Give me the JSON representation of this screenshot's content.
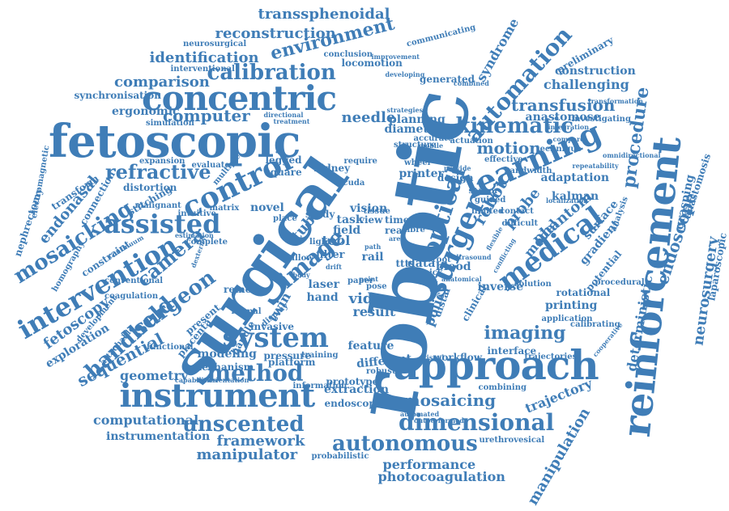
{
  "color": "#3f7db7",
  "words": [
    "robotic",
    "surgical",
    "fetoscopic",
    "concentric",
    "approach",
    "reinforcement",
    "instrument",
    "learning",
    "medical",
    "surgery",
    "optical",
    "control",
    "image",
    "system",
    "assisted",
    "intervention",
    "mosaicking",
    "method",
    "surgeon",
    "dimensional",
    "unscented",
    "autonomous",
    "kinematic",
    "automation",
    "transfusion",
    "procedure",
    "endoscope",
    "refractive",
    "calibration",
    "environment",
    "reconstruction",
    "transsphenoidal",
    "identification",
    "comparison",
    "computer",
    "imaging",
    "handheld",
    "sequential",
    "camera",
    "geometry",
    "computational",
    "instrumentation",
    "framework",
    "manipulator",
    "performance",
    "photocoagulation",
    "manipulation",
    "mosaicing",
    "trajectory",
    "deterministic",
    "neurosurgery",
    "grasping",
    "laparoscopic",
    "anastomosis",
    "challenging",
    "construction",
    "preliminary",
    "anastomose",
    "synchronisation",
    "ergonomic",
    "endonasal",
    "fetoscopy",
    "exploration",
    "motion",
    "adaptation",
    "kalman",
    "phantom",
    "probe",
    "robot",
    "video",
    "result",
    "extraction",
    "endoscopic",
    "printing",
    "tube",
    "twin",
    "tool",
    "filter",
    "laser",
    "hand",
    "feature",
    "different",
    "platform",
    "modeling",
    "mechanism",
    "printer",
    "design",
    "vision",
    "view",
    "time",
    "real",
    "fibre",
    "planning",
    "needle",
    "diameter",
    "syndrome",
    "communicating",
    "generated",
    "locomotion",
    "neurosurgical",
    "interventional",
    "simulation",
    "expansion",
    "distortion",
    "stitching",
    "homography",
    "constraint",
    "nephrectomy",
    "electromagnetic",
    "transform",
    "connection",
    "square",
    "legged",
    "kidney",
    "novel",
    "study",
    "task",
    "field",
    "rail",
    "data",
    "blood",
    "policy",
    "distal",
    "clinical",
    "inverse",
    "rotational",
    "gradient",
    "surface",
    "model",
    "potential",
    "interface",
    "workflow",
    "prototype",
    "robust",
    "invasive",
    "pressure",
    "training",
    "formal",
    "remote",
    "handle",
    "conventional",
    "coagulation",
    "development",
    "attachable",
    "functional",
    "placenta",
    "present",
    "complete",
    "intuitive",
    "matrix",
    "evaluate",
    "multiple",
    "structure",
    "effective",
    "bandwidth",
    "technique",
    "investigating",
    "transformation",
    "combined",
    "developing",
    "improvement",
    "conclusion",
    "treatment",
    "directional",
    "strategies",
    "wheel",
    "accurate",
    "actuation",
    "guided",
    "limited",
    "sensor",
    "contact",
    "difficult",
    "solution",
    "application",
    "calibrating",
    "trajectories",
    "combining",
    "automated",
    "outperformed",
    "urethrovesical",
    "probabilistic",
    "information",
    "display",
    "centre",
    "mobile",
    "analysis",
    "localization",
    "procedural",
    "cooperative",
    "omnidirectional",
    "repeatability",
    "continuum",
    "malignant",
    "flexible",
    "conflicting",
    "anatomical",
    "orientation",
    "estimation",
    "dexterity",
    "visual",
    "pick",
    "root",
    "tissue",
    "light",
    "drift",
    "cuda",
    "capabilities",
    "ttts",
    "pose",
    "point",
    "allow",
    "paper",
    "require",
    "provide",
    "ultrasound",
    "integration",
    "compare",
    "path",
    "area",
    "body",
    "place"
  ]
}
